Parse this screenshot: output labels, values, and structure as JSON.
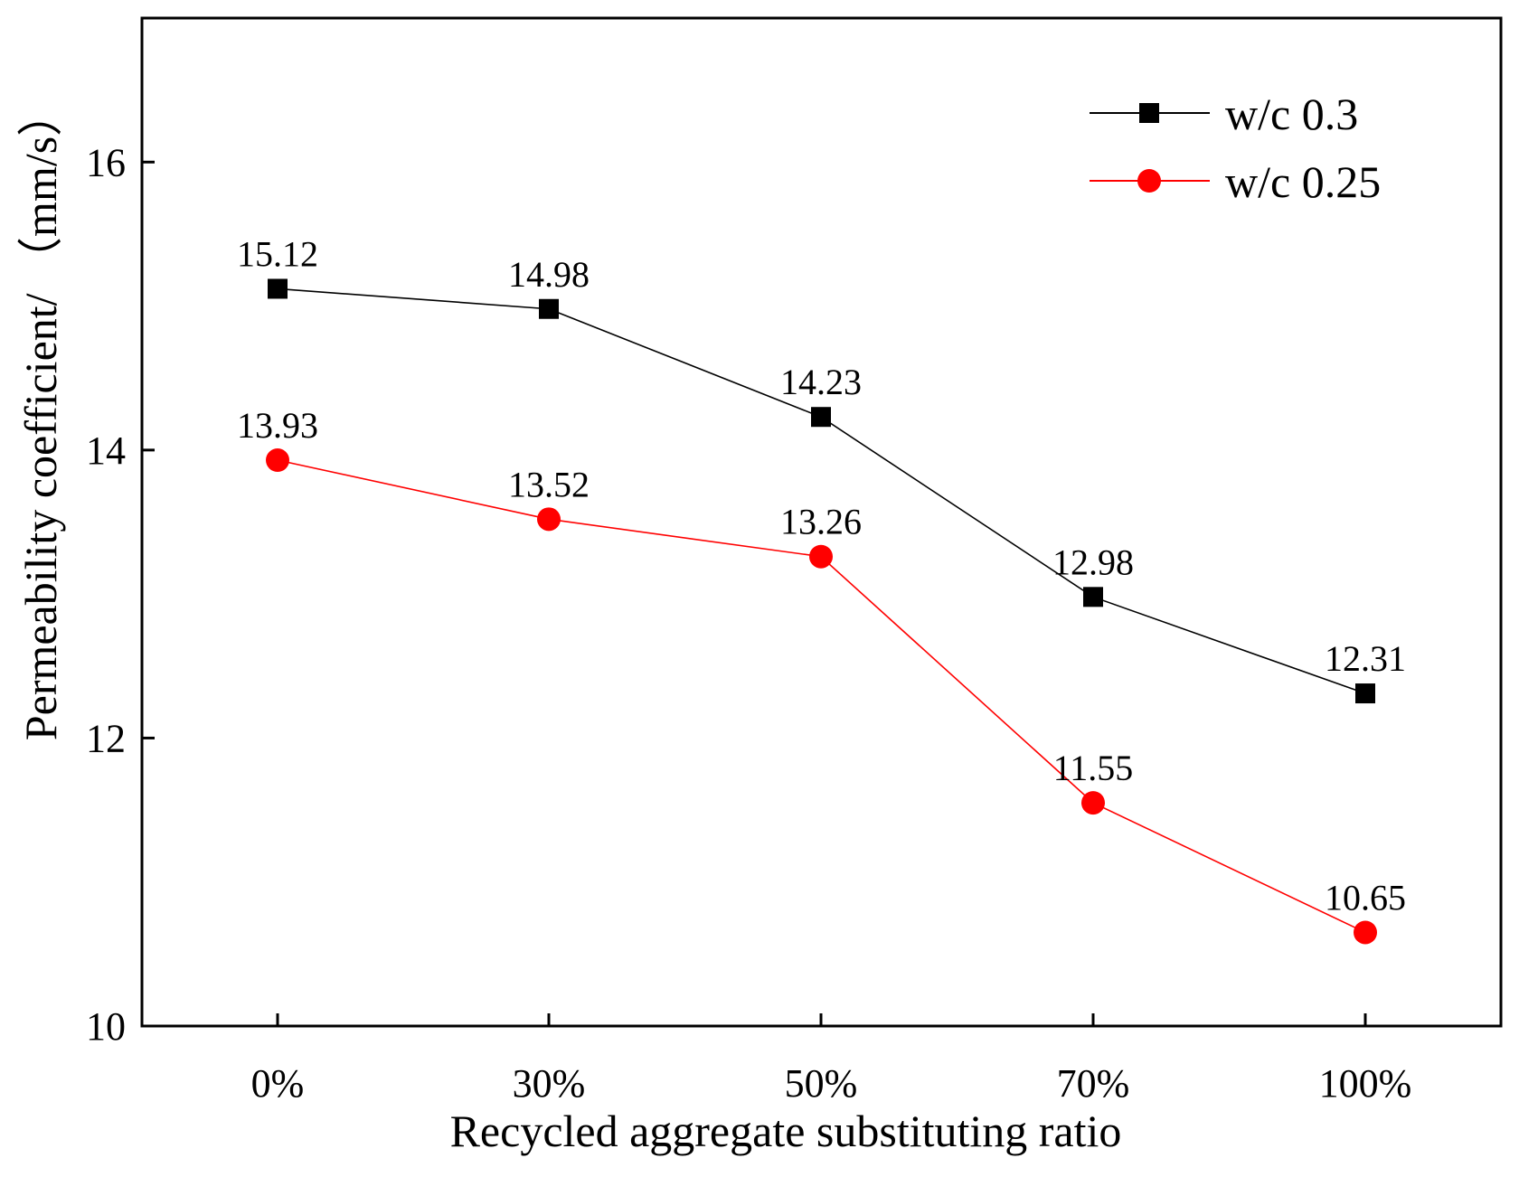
{
  "chart_data": {
    "type": "line",
    "title": "",
    "xlabel": "Recycled aggregate substituting ratio",
    "ylabel": "Permeability coefficient/ （mm/s）",
    "categories": [
      "0%",
      "30%",
      "50%",
      "70%",
      "100%"
    ],
    "ylim": [
      10,
      17
    ],
    "yticks": [
      10,
      12,
      14,
      16
    ],
    "legend_position": "top-right",
    "grid": false,
    "series": [
      {
        "name": "w/c 0.3",
        "marker": "square",
        "color": "#000000",
        "values": [
          15.12,
          14.98,
          14.23,
          12.98,
          12.31
        ],
        "labels": [
          "15.12",
          "14.98",
          "14.23",
          "12.98",
          "12.31"
        ]
      },
      {
        "name": "w/c 0.25",
        "marker": "circle",
        "color": "#ff0000",
        "values": [
          13.93,
          13.52,
          13.26,
          11.55,
          10.65
        ],
        "labels": [
          "13.93",
          "13.52",
          "13.26",
          "11.55",
          "10.65"
        ]
      }
    ]
  }
}
